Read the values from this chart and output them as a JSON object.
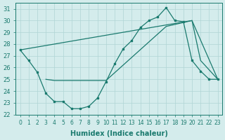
{
  "line1_x": [
    0,
    1,
    2,
    3,
    4,
    5,
    6,
    7,
    8,
    9,
    10,
    11,
    12,
    13,
    14,
    15,
    16,
    17,
    18,
    19,
    20,
    21,
    22,
    23
  ],
  "line1_y": [
    27.5,
    26.6,
    25.6,
    23.8,
    23.1,
    23.1,
    22.5,
    22.5,
    22.7,
    23.4,
    24.8,
    26.3,
    27.6,
    28.3,
    29.4,
    30.0,
    30.3,
    31.1,
    30.0,
    29.9,
    26.6,
    25.7,
    25.0,
    25.0
  ],
  "line2_x": [
    0,
    20,
    21,
    23
  ],
  "line2_y": [
    27.5,
    30.0,
    26.6,
    25.0
  ],
  "line3_x": [
    3,
    4,
    10,
    17,
    20,
    23
  ],
  "line3_y": [
    25.0,
    24.9,
    24.9,
    29.5,
    30.0,
    25.0
  ],
  "xlim": [
    -0.5,
    23.5
  ],
  "ylim": [
    22.0,
    31.5
  ],
  "yticks": [
    22,
    23,
    24,
    25,
    26,
    27,
    28,
    29,
    30,
    31
  ],
  "xticks": [
    0,
    1,
    2,
    3,
    4,
    5,
    6,
    7,
    8,
    9,
    10,
    11,
    12,
    13,
    14,
    15,
    16,
    17,
    18,
    19,
    20,
    21,
    22,
    23
  ],
  "xlabel": "Humidex (Indice chaleur)",
  "color": "#1a7a6e",
  "bg_color": "#d4ecec",
  "grid_color": "#b0d4d4"
}
